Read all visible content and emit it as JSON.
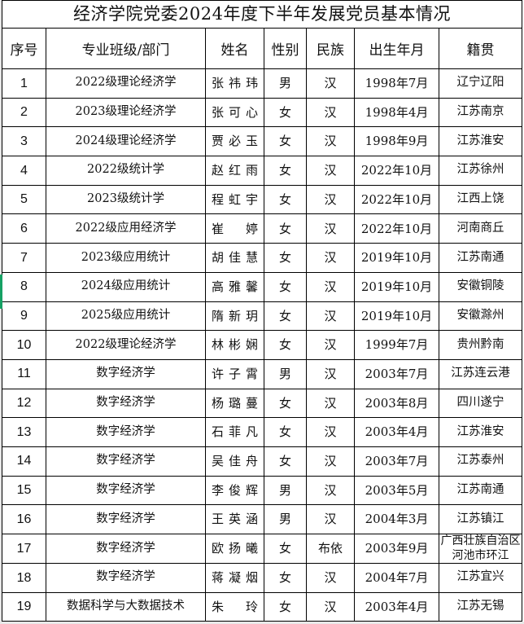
{
  "title": "经济学院党委2024年度下半年发展党员基本情况",
  "table": {
    "columns": [
      "序号",
      "专业班级/部门",
      "姓名",
      "性别",
      "民族",
      "出生年月",
      "籍贯"
    ],
    "rows": [
      {
        "no": "1",
        "major": "2022级理论经济学",
        "name": "张祎玮",
        "gender": "男",
        "ethnic": "汉",
        "birth": "1998年7月",
        "origin": "辽宁辽阳"
      },
      {
        "no": "2",
        "major": "2023级理论经济学",
        "name": "张可心",
        "gender": "女",
        "ethnic": "汉",
        "birth": "1998年4月",
        "origin": "江苏南京"
      },
      {
        "no": "3",
        "major": "2024级理论经济学",
        "name": "贾必玉",
        "gender": "女",
        "ethnic": "汉",
        "birth": "1998年9月",
        "origin": "江苏淮安"
      },
      {
        "no": "4",
        "major": "2022级统计学",
        "name": "赵红雨",
        "gender": "女",
        "ethnic": "汉",
        "birth": "2022年10月",
        "origin": "江苏徐州"
      },
      {
        "no": "5",
        "major": "2023级统计学",
        "name": "程虹宇",
        "gender": "女",
        "ethnic": "汉",
        "birth": "2022年10月",
        "origin": "江西上饶"
      },
      {
        "no": "6",
        "major": "2022级应用经济学",
        "name": "崔婷",
        "gender": "女",
        "ethnic": "汉",
        "birth": "2022年10月",
        "origin": "河南商丘"
      },
      {
        "no": "7",
        "major": "2023级应用统计",
        "name": "胡佳慧",
        "gender": "女",
        "ethnic": "汉",
        "birth": "2019年10月",
        "origin": "江苏南通"
      },
      {
        "no": "8",
        "major": "2024级应用统计",
        "name": "高雅馨",
        "gender": "女",
        "ethnic": "汉",
        "birth": "2019年10月",
        "origin": "安徽铜陵"
      },
      {
        "no": "9",
        "major": "2025级应用统计",
        "name": "隋新玥",
        "gender": "女",
        "ethnic": "汉",
        "birth": "2019年10月",
        "origin": "安徽滁州"
      },
      {
        "no": "10",
        "major": "2022级理论经济学",
        "name": "林彬娴",
        "gender": "女",
        "ethnic": "汉",
        "birth": "1999年7月",
        "origin": "贵州黔南"
      },
      {
        "no": "11",
        "major": "数字经济学",
        "name": "许子霄",
        "gender": "男",
        "ethnic": "汉",
        "birth": "2003年7月",
        "origin": "江苏连云港"
      },
      {
        "no": "12",
        "major": "数字经济学",
        "name": "杨璐蔓",
        "gender": "女",
        "ethnic": "汉",
        "birth": "2003年8月",
        "origin": "四川遂宁"
      },
      {
        "no": "13",
        "major": "数字经济学",
        "name": "石菲凡",
        "gender": "女",
        "ethnic": "汉",
        "birth": "2003年4月",
        "origin": "江苏淮安"
      },
      {
        "no": "14",
        "major": "数字经济学",
        "name": "吴佳舟",
        "gender": "女",
        "ethnic": "汉",
        "birth": "2003年7月",
        "origin": "江苏泰州"
      },
      {
        "no": "15",
        "major": "数字经济学",
        "name": "李俊辉",
        "gender": "男",
        "ethnic": "汉",
        "birth": "2003年5月",
        "origin": "江苏南通"
      },
      {
        "no": "16",
        "major": "数字经济学",
        "name": "王英涵",
        "gender": "男",
        "ethnic": "汉",
        "birth": "2004年3月",
        "origin": "江苏镇江"
      },
      {
        "no": "17",
        "major": "数字经济学",
        "name": "欧扬曦",
        "gender": "女",
        "ethnic": "布依",
        "birth": "2003年9月",
        "origin": "广西壮族自治区河池市环江"
      },
      {
        "no": "18",
        "major": "数字经济学",
        "name": "蒋凝烟",
        "gender": "女",
        "ethnic": "汉",
        "birth": "2004年7月",
        "origin": "江苏宜兴"
      },
      {
        "no": "19",
        "major": "数据科学与大数据技术",
        "name": "朱玲",
        "gender": "女",
        "ethnic": "汉",
        "birth": "2003年4月",
        "origin": "江苏无锡"
      }
    ]
  },
  "selection": {
    "selected_row_no": "8",
    "marker_color": "#16a164"
  },
  "colors": {
    "border": "#000000",
    "background": "#ffffff",
    "text": "#111111"
  }
}
